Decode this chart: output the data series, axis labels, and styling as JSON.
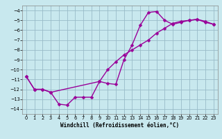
{
  "xlabel": "Windchill (Refroidissement éolien,°C)",
  "bg_color": "#c8e8ee",
  "grid_color": "#99bbc8",
  "line_color": "#990099",
  "xlim": [
    -0.5,
    23.5
  ],
  "ylim": [
    -14.5,
    -3.5
  ],
  "xticks": [
    0,
    1,
    2,
    3,
    4,
    5,
    6,
    7,
    8,
    9,
    10,
    11,
    12,
    13,
    14,
    15,
    16,
    17,
    18,
    19,
    20,
    21,
    22,
    23
  ],
  "yticks": [
    -14,
    -13,
    -12,
    -11,
    -10,
    -9,
    -8,
    -7,
    -6,
    -5,
    -4
  ],
  "line1_x": [
    0,
    1,
    2,
    3,
    4,
    5,
    6,
    7,
    8,
    9,
    10,
    11,
    12,
    13,
    14,
    15,
    16,
    17,
    18,
    19,
    20,
    21,
    22,
    23
  ],
  "line1_y": [
    -10.7,
    -12.0,
    -12.0,
    -12.3,
    -13.5,
    -13.6,
    -12.8,
    -12.8,
    -12.8,
    -11.2,
    -11.4,
    -11.5,
    -9.0,
    -7.5,
    -5.5,
    -4.2,
    -4.1,
    -5.0,
    -5.4,
    -5.2,
    -5.0,
    -4.9,
    -5.1,
    -5.4
  ],
  "line2_x": [
    0,
    1,
    2,
    3,
    9,
    10,
    11,
    12,
    13,
    14,
    15,
    16,
    17,
    18,
    19,
    20,
    21,
    22,
    23
  ],
  "line2_y": [
    -10.7,
    -12.0,
    -12.0,
    -12.3,
    -11.2,
    -10.0,
    -9.2,
    -8.5,
    -8.0,
    -7.5,
    -7.0,
    -6.3,
    -5.8,
    -5.3,
    -5.1,
    -5.0,
    -4.9,
    -5.2,
    -5.4
  ],
  "marker": "D",
  "markersize": 2.5,
  "linewidth": 1.0,
  "ylabel_fontsize": 5.0,
  "xlabel_fontsize": 5.5,
  "tick_fontsize": 4.8
}
